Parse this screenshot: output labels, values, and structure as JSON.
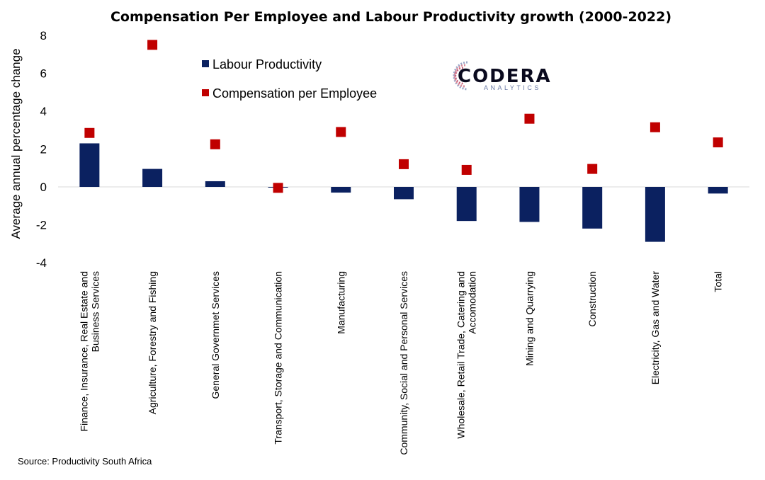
{
  "chart_data": {
    "type": "bar",
    "title": "Compensation Per Employee and Labour Productivity growth (2000-2022)",
    "ylabel": "Average annual percentage change",
    "xlabel": "",
    "ylim": [
      -4,
      8
    ],
    "yticks": [
      8,
      6,
      4,
      2,
      0,
      -2,
      -4
    ],
    "grid": false,
    "legend_position": "top-left",
    "categories": [
      [
        "Finance, Insurance, Real Estate and",
        "Business Services"
      ],
      [
        "Agriculture, Forestry and Fishing"
      ],
      [
        "General Governmet Services"
      ],
      [
        "Transport, Storage and Communication"
      ],
      [
        "Manufacturing"
      ],
      [
        "Community, Social and Personal Services"
      ],
      [
        "Wholesale, Retail Trade, Catering and",
        "Accomodation"
      ],
      [
        "Mining and Quarrying"
      ],
      [
        "Construction"
      ],
      [
        "Electricity, Gas and Water"
      ],
      [
        "Total"
      ]
    ],
    "series": [
      {
        "name": "Labour Productivity",
        "kind": "bar",
        "color": "#0b2160",
        "values": [
          2.3,
          0.95,
          0.3,
          0.0,
          -0.3,
          -0.65,
          -1.8,
          -1.85,
          -2.2,
          -2.9,
          -0.35
        ]
      },
      {
        "name": "Compensation per Employee",
        "kind": "marker",
        "color": "#c00000",
        "values": [
          2.85,
          7.5,
          2.25,
          -0.05,
          2.9,
          1.2,
          0.9,
          3.6,
          0.95,
          3.15,
          2.35
        ]
      }
    ],
    "source": "Source: Productivity South Africa"
  },
  "logo": {
    "name": "CODERA",
    "tagline": "ANALYTICS"
  }
}
